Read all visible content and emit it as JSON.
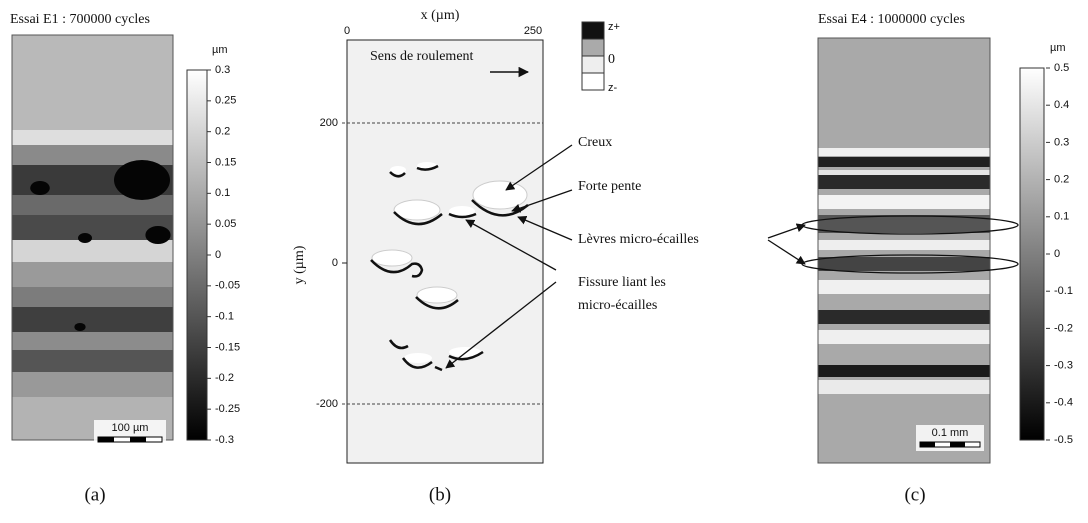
{
  "panels": [
    {
      "title": "Essai E1 : 700000 cycles",
      "colorbar": {
        "unit": "µm",
        "ticks": [
          0.3,
          0.25,
          0.2,
          0.15,
          0.1,
          0.05,
          0,
          -0.05,
          -0.1,
          -0.15,
          -0.2,
          -0.25,
          -0.3
        ]
      },
      "scale_bar": "100 µm",
      "caption": "(a)"
    },
    {
      "x_axis": {
        "label": "x (µm)",
        "ticks": [
          0,
          250
        ]
      },
      "y_axis": {
        "label": "y (µm)",
        "ticks": [
          200,
          0,
          -200
        ]
      },
      "direction": "Sens de roulement",
      "legend": [
        "z+",
        "0",
        "z-"
      ],
      "annotations": [
        "Creux",
        "Forte pente",
        "Lèvres micro-écailles",
        "Fissure liant les",
        "micro-écailles"
      ],
      "caption": "(b)"
    },
    {
      "title": "Essai E4 : 1000000 cycles",
      "colorbar": {
        "unit": "µm",
        "ticks": [
          0.5,
          0.4,
          0.3,
          0.2,
          0.1,
          0,
          -0.1,
          -0.2,
          -0.3,
          -0.4,
          -0.5
        ]
      },
      "scale_bar": "0.1 mm",
      "caption": "(c)"
    }
  ]
}
